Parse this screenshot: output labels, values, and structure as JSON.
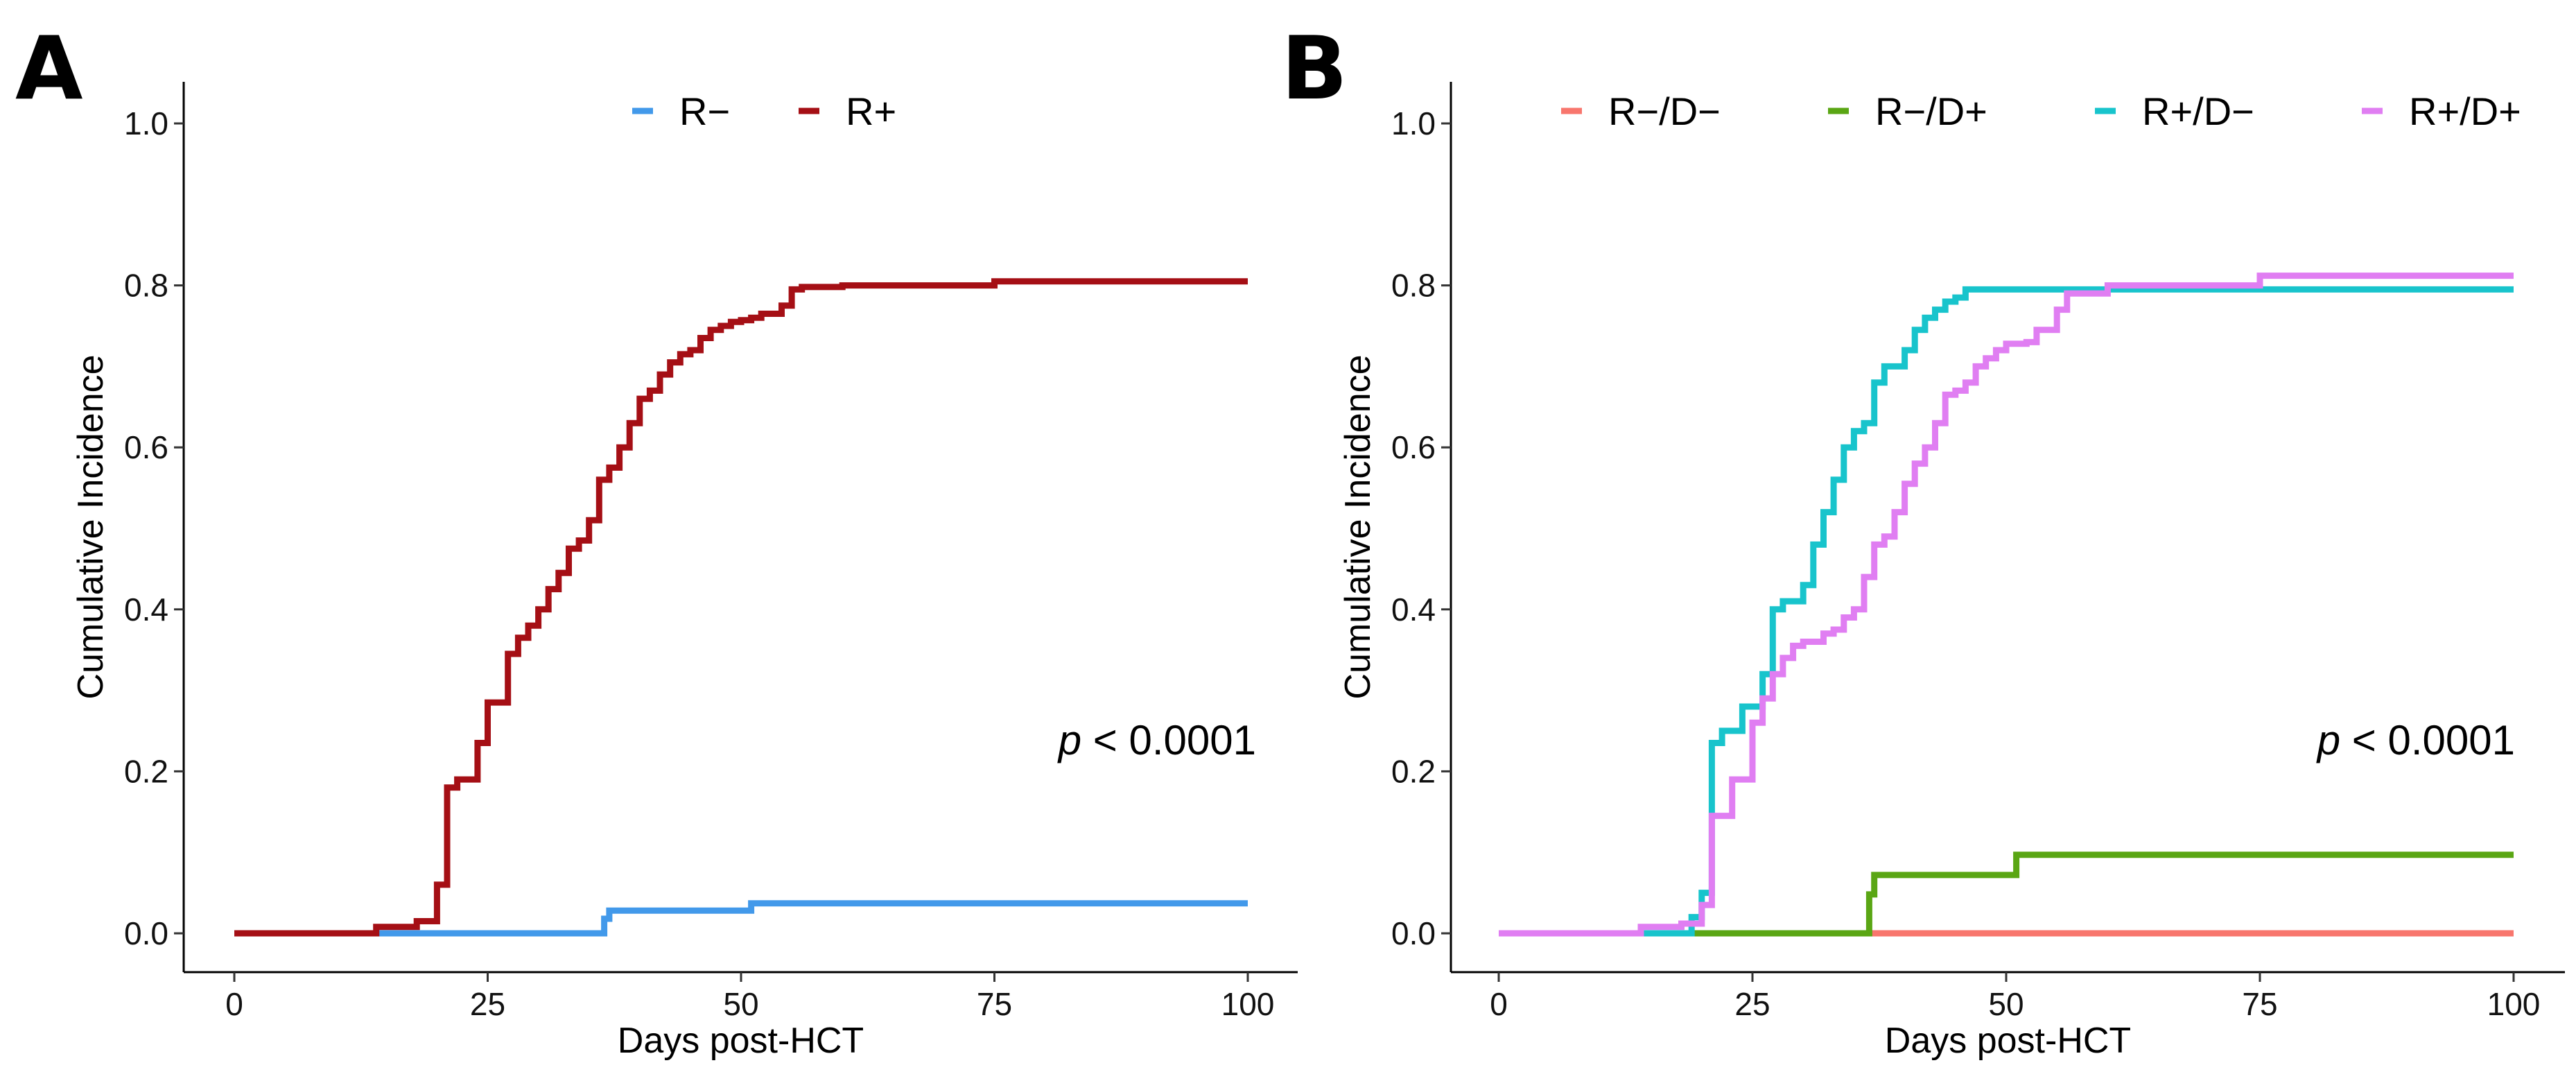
{
  "chart_data": [
    {
      "type": "line",
      "panel_label": "A",
      "xlabel": "Days post-HCT",
      "ylabel": "Cumulative Incidence",
      "xlim": [
        0,
        100
      ],
      "ylim": [
        0,
        1.0
      ],
      "x_ticks": [
        0,
        25,
        50,
        75,
        100
      ],
      "y_ticks": [
        "0.0",
        "0.2",
        "0.4",
        "0.6",
        "0.8",
        "1.0"
      ],
      "grid": false,
      "legend_position": "top",
      "annotation": {
        "italic": "p",
        "rest": " < 0.0001"
      },
      "series": [
        {
          "name": "R−",
          "color": "#4299ea",
          "x": [
            0,
            14,
            36,
            36.5,
            37,
            51,
            100
          ],
          "y": [
            0,
            0,
            0,
            0.018,
            0.028,
            0.037,
            0.037
          ]
        },
        {
          "name": "R+",
          "color": "#a50f15",
          "x": [
            0,
            14,
            18,
            19,
            20,
            21,
            22,
            24,
            25,
            27,
            28,
            29,
            30,
            31,
            32,
            33,
            34,
            35,
            36,
            37,
            38,
            39,
            40,
            41,
            42,
            43,
            44,
            45,
            46,
            47,
            48,
            49,
            50,
            51,
            52,
            54,
            55,
            56,
            60,
            75,
            100
          ],
          "y": [
            0,
            0.008,
            0.015,
            0.015,
            0.06,
            0.18,
            0.19,
            0.235,
            0.285,
            0.345,
            0.365,
            0.38,
            0.4,
            0.425,
            0.445,
            0.475,
            0.485,
            0.51,
            0.56,
            0.575,
            0.6,
            0.63,
            0.66,
            0.67,
            0.69,
            0.705,
            0.715,
            0.72,
            0.735,
            0.745,
            0.75,
            0.755,
            0.757,
            0.76,
            0.765,
            0.775,
            0.795,
            0.798,
            0.8,
            0.805,
            0.805
          ]
        }
      ]
    },
    {
      "type": "line",
      "panel_label": "B",
      "xlabel": "Days post-HCT",
      "ylabel": "Cumulative Incidence",
      "xlim": [
        0,
        100
      ],
      "ylim": [
        0,
        1.0
      ],
      "x_ticks": [
        0,
        25,
        50,
        75,
        100
      ],
      "y_ticks": [
        "0.0",
        "0.2",
        "0.4",
        "0.6",
        "0.8",
        "1.0"
      ],
      "grid": false,
      "legend_position": "top",
      "annotation": {
        "italic": "p",
        "rest": " < 0.0001"
      },
      "series": [
        {
          "name": "R−/D−",
          "color": "#f8766d",
          "x": [
            0,
            100
          ],
          "y": [
            0,
            0
          ]
        },
        {
          "name": "R−/D+",
          "color": "#5aa614",
          "x": [
            0,
            36,
            36.5,
            37,
            50,
            51,
            100
          ],
          "y": [
            0,
            0,
            0.048,
            0.072,
            0.072,
            0.097,
            0.097
          ]
        },
        {
          "name": "R+/D−",
          "color": "#18c4cc",
          "x": [
            0,
            14,
            19,
            20,
            21,
            22,
            24,
            26,
            27,
            28,
            30,
            31,
            32,
            33,
            34,
            35,
            36,
            37,
            38,
            39,
            40,
            41,
            42,
            43,
            44,
            45,
            46,
            100
          ],
          "y": [
            0,
            0,
            0.02,
            0.05,
            0.235,
            0.25,
            0.28,
            0.32,
            0.4,
            0.41,
            0.43,
            0.48,
            0.52,
            0.56,
            0.6,
            0.62,
            0.63,
            0.68,
            0.7,
            0.7,
            0.72,
            0.745,
            0.76,
            0.77,
            0.78,
            0.785,
            0.795,
            0.795
          ]
        },
        {
          "name": "R+/D+",
          "color": "#e07ef2",
          "x": [
            0,
            14,
            18,
            20,
            21,
            22,
            23,
            25,
            26,
            27,
            28,
            29,
            30,
            32,
            33,
            34,
            35,
            36,
            37,
            38,
            39,
            40,
            41,
            42,
            43,
            44,
            45,
            46,
            47,
            48,
            49,
            50,
            52,
            53,
            55,
            56,
            58,
            60,
            75,
            100
          ],
          "y": [
            0,
            0.008,
            0.012,
            0.035,
            0.145,
            0.145,
            0.19,
            0.26,
            0.29,
            0.32,
            0.34,
            0.355,
            0.36,
            0.37,
            0.375,
            0.39,
            0.4,
            0.44,
            0.48,
            0.49,
            0.52,
            0.555,
            0.58,
            0.6,
            0.63,
            0.665,
            0.67,
            0.68,
            0.7,
            0.71,
            0.72,
            0.728,
            0.73,
            0.745,
            0.77,
            0.79,
            0.79,
            0.8,
            0.812,
            0.812
          ]
        }
      ]
    }
  ]
}
